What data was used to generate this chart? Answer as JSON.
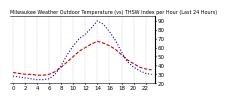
{
  "title": "Milwaukee Weather Outdoor Temperature (vs) THSW Index per Hour (Last 24 Hours)",
  "hours": [
    0,
    1,
    2,
    3,
    4,
    5,
    6,
    7,
    8,
    9,
    10,
    11,
    12,
    13,
    14,
    15,
    16,
    17,
    18,
    19,
    20,
    21,
    22,
    23
  ],
  "temp": [
    32,
    31,
    30,
    30,
    29,
    29,
    30,
    33,
    38,
    44,
    50,
    56,
    60,
    64,
    67,
    65,
    62,
    58,
    52,
    46,
    42,
    38,
    36,
    35
  ],
  "thsw": [
    28,
    27,
    26,
    25,
    24,
    24,
    25,
    30,
    40,
    52,
    62,
    70,
    75,
    82,
    90,
    86,
    78,
    68,
    55,
    44,
    38,
    34,
    31,
    30
  ],
  "temp_color": "#cc0000",
  "thsw_color": "#0000cc",
  "bg_color": "#ffffff",
  "grid_color": "#aaaaaa",
  "ylim_min": 20,
  "ylim_max": 95,
  "yticks": [
    20,
    30,
    40,
    50,
    60,
    70,
    80,
    90
  ],
  "tick_label_size": 4,
  "title_fontsize": 3.5
}
